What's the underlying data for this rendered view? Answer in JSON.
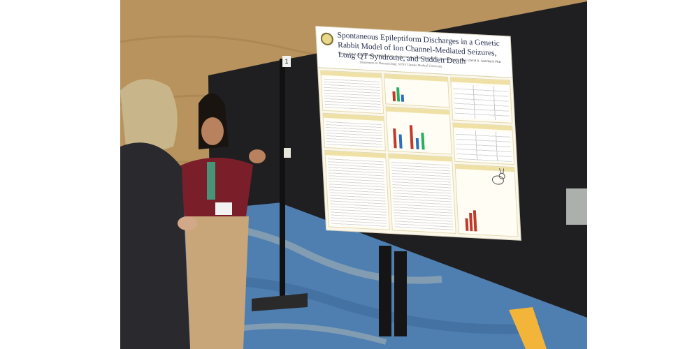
{
  "photo": {
    "subject": "poster",
    "colors": {
      "wall": "#b8935d",
      "board": "#1f1f22",
      "carpet": "#4f7fb0",
      "poster_bg": "#fbf7ea",
      "cardigan": "#7a1f2a",
      "pants": "#c9a57a",
      "suit": "#2a2a2e"
    }
  },
  "poster": {
    "title": "Spontaneous Epileptiform Discharges in a Genetic Rabbit Model of Ion Channel-Mediated Seizures, Long QT Syndrome, and Sudden Death",
    "authors": "Shreya Patel, Kalin Kwok, Ruihua Kim, Katherine R. Sabol, Richard D. Wszolkowski PhD, David S. Auerbach PhD",
    "affiliation": "Department of Pharmacology, SUNY Upstate Medical University",
    "board_number": "1"
  }
}
